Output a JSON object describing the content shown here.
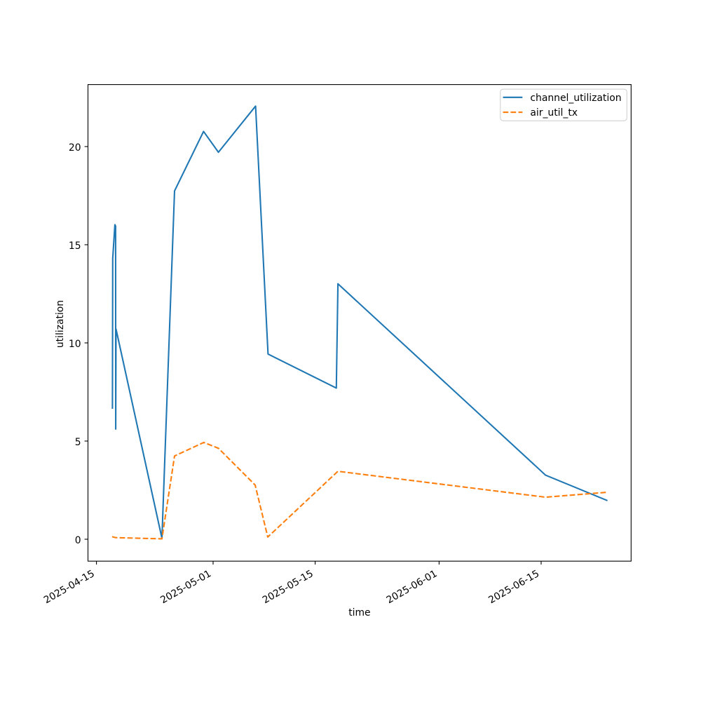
{
  "figure": {
    "background": "#ffffff"
  },
  "chart_data": {
    "type": "line",
    "title": "",
    "xlabel": "time",
    "ylabel": "utilization",
    "grid": false,
    "legend": {
      "location": "upper right"
    },
    "x_axis": {
      "tick_labels": [
        "2025-04-15",
        "2025-05-01",
        "2025-05-15",
        "2025-06-01",
        "2025-06-15"
      ],
      "tick_dates": [
        "2025-04-15 00:00",
        "2025-05-01 00:00",
        "2025-05-15 00:00",
        "2025-06-01 00:00",
        "2025-06-15 00:00"
      ],
      "lim": [
        "2025-04-13 20:05",
        "2025-06-27 08:10"
      ],
      "label_rotation_deg": 30
    },
    "y_axis": {
      "ticks": [
        0,
        5,
        10,
        15,
        20
      ],
      "lim": [
        -1.116,
        23.157
      ]
    },
    "series": [
      {
        "name": "channel_utilization",
        "color": "#1f77b4",
        "line_style": "solid",
        "points": [
          [
            "2025-04-17 04:36",
            6.68
          ],
          [
            "2025-04-17 05:33",
            14.3
          ],
          [
            "2025-04-17 12:42",
            16.02
          ],
          [
            "2025-04-17 15:00",
            15.95
          ],
          [
            "2025-04-17 15:27",
            5.61
          ],
          [
            "2025-04-17 16:23",
            10.71
          ],
          [
            "2025-04-23 23:33",
            0.05
          ],
          [
            "2025-04-25 17:05",
            17.74
          ],
          [
            "2025-04-29 16:36",
            20.77
          ],
          [
            "2025-05-01 17:32",
            19.71
          ],
          [
            "2025-05-06 19:51",
            22.06
          ],
          [
            "2025-05-08 12:54",
            9.43
          ],
          [
            "2025-05-17 21:41",
            7.7
          ],
          [
            "2025-05-18 03:00",
            13.01
          ],
          [
            "2025-06-15 14:45",
            3.26
          ],
          [
            "2025-06-24 00:00",
            1.98
          ]
        ]
      },
      {
        "name": "air_util_tx",
        "color": "#ff7f0e",
        "line_style": "dashed",
        "points": [
          [
            "2025-04-17 03:27",
            0.13
          ],
          [
            "2025-04-17 15:14",
            0.08
          ],
          [
            "2025-04-23 23:33",
            0.02
          ],
          [
            "2025-04-25 17:05",
            4.24
          ],
          [
            "2025-04-29 17:32",
            4.93
          ],
          [
            "2025-05-01 17:46",
            4.63
          ],
          [
            "2025-05-06 18:27",
            2.76
          ],
          [
            "2025-05-08 12:00",
            0.11
          ],
          [
            "2025-05-18 02:46",
            3.46
          ],
          [
            "2025-06-15 14:45",
            2.14
          ],
          [
            "2025-06-24 00:00",
            2.39
          ]
        ]
      }
    ]
  }
}
